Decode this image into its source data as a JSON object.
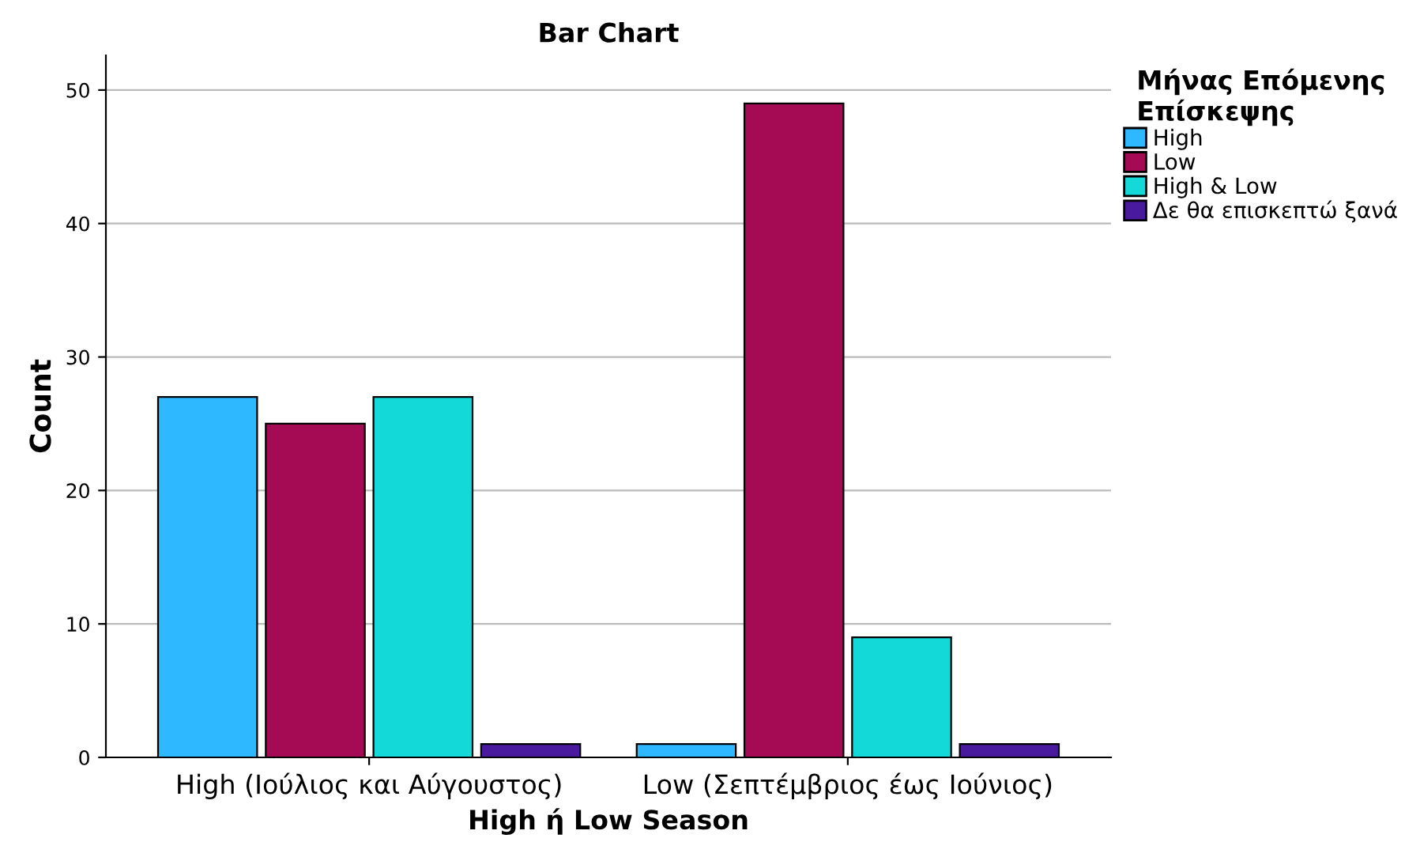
{
  "chart_data": {
    "type": "bar",
    "title": "Bar Chart",
    "xlabel": "High ή Low Season",
    "ylabel": "Count",
    "legend_title": "Μήνας Επόμενης\nΕπίσκεψης",
    "categories": [
      "High (Ιούλιος και Αύγουστος)",
      "Low (Σεπτέμβριος έως Ιούνιος)"
    ],
    "series": [
      {
        "name": "High",
        "color": "#2eb8ff",
        "values": [
          27,
          1
        ]
      },
      {
        "name": "Low",
        "color": "#a50a55",
        "values": [
          25,
          49
        ]
      },
      {
        "name": "High & Low",
        "color": "#14d9d9",
        "values": [
          27,
          9
        ]
      },
      {
        "name": "Δε θα επισκεπτώ ξανά",
        "color": "#4a1a9e",
        "values": [
          1,
          1
        ]
      }
    ],
    "ylim": [
      0,
      52.6
    ],
    "yticks": [
      0,
      10,
      20,
      30,
      40,
      50
    ],
    "grid": "y",
    "legend": "top right"
  }
}
